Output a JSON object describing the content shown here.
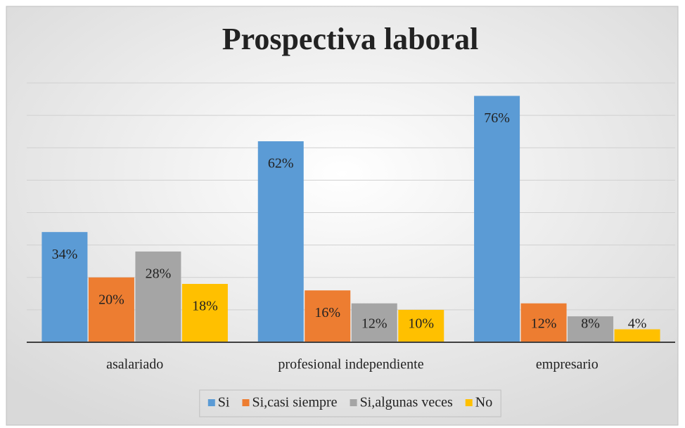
{
  "chart_data": {
    "type": "bar",
    "title": "Prospectiva laboral",
    "categories": [
      "asalariado",
      "profesional independiente",
      "empresario"
    ],
    "series": [
      {
        "name": "Si",
        "color": "#5b9bd5",
        "values": [
          34,
          62,
          76
        ],
        "value_labels": [
          "34%",
          "62%",
          "76%"
        ]
      },
      {
        "name": "Si,casi siempre",
        "color": "#ed7d31",
        "values": [
          20,
          16,
          12
        ],
        "value_labels": [
          "20%",
          "16%",
          "12%"
        ]
      },
      {
        "name": "Si,algunas veces",
        "color": "#a5a5a5",
        "values": [
          28,
          12,
          8
        ],
        "value_labels": [
          "28%",
          "12%",
          "8%"
        ]
      },
      {
        "name": "No",
        "color": "#ffc000",
        "values": [
          18,
          10,
          4
        ],
        "value_labels": [
          "18%",
          "10%",
          "4%"
        ]
      }
    ],
    "ylim": [
      0,
      80
    ],
    "yticks": [
      0,
      10,
      20,
      30,
      40,
      50,
      60,
      70,
      80
    ],
    "grid": true,
    "legend": "bottom"
  }
}
